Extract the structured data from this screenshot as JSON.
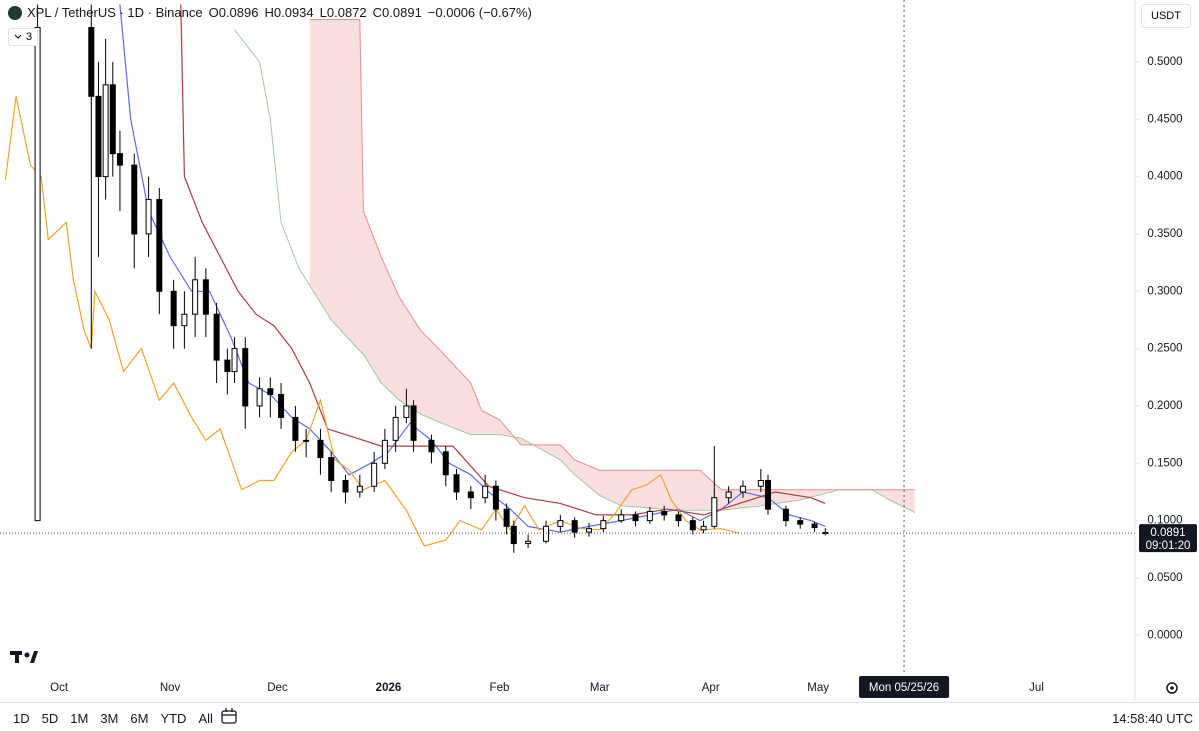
{
  "header": {
    "symbol": "XPL / TetherUS · 1D · Binance",
    "ohlc_labels": [
      "O",
      "H",
      "L",
      "C"
    ],
    "change": "−0.0006 (−0.67%)",
    "indicator_count": "3"
  },
  "chart_data": {
    "type": "candlestick",
    "currency": "USDT",
    "up_color": "#ffffff",
    "down_color": "#000000",
    "wick_color": "#000000",
    "candles": {
      "x": [
        -6,
        9,
        11,
        13,
        15,
        17,
        21,
        25,
        28,
        32,
        35,
        38,
        41,
        44,
        47,
        49,
        52,
        56,
        59,
        62,
        66,
        69,
        73,
        76,
        80,
        84,
        88,
        91,
        94,
        97,
        99,
        104,
        108,
        111,
        115,
        119,
        122,
        125,
        127,
        131,
        136,
        140,
        144,
        148,
        152,
        157,
        161,
        165,
        169,
        173,
        177,
        180,
        183,
        187,
        191,
        196,
        198,
        203,
        207,
        211,
        214
      ],
      "open": [
        0.1,
        0.53,
        0.47,
        0.4,
        0.48,
        0.42,
        0.41,
        0.35,
        0.38,
        0.3,
        0.27,
        0.28,
        0.31,
        0.28,
        0.24,
        0.23,
        0.25,
        0.2,
        0.215,
        0.21,
        0.19,
        0.17,
        0.17,
        0.155,
        0.135,
        0.125,
        0.13,
        0.15,
        0.17,
        0.19,
        0.2,
        0.17,
        0.16,
        0.14,
        0.125,
        0.12,
        0.13,
        0.11,
        0.095,
        0.08,
        0.082,
        0.095,
        0.1,
        0.09,
        0.093,
        0.1,
        0.105,
        0.1,
        0.108,
        0.105,
        0.1,
        0.092,
        0.095,
        0.12,
        0.125,
        0.13,
        0.135,
        0.11,
        0.1,
        0.097,
        0.0896
      ],
      "high": [
        0.55,
        0.55,
        0.5,
        0.52,
        0.5,
        0.44,
        0.42,
        0.4,
        0.39,
        0.31,
        0.3,
        0.33,
        0.32,
        0.29,
        0.25,
        0.26,
        0.26,
        0.225,
        0.225,
        0.22,
        0.2,
        0.18,
        0.18,
        0.16,
        0.14,
        0.14,
        0.16,
        0.18,
        0.2,
        0.215,
        0.205,
        0.175,
        0.165,
        0.145,
        0.13,
        0.14,
        0.135,
        0.115,
        0.1,
        0.088,
        0.1,
        0.105,
        0.103,
        0.098,
        0.104,
        0.11,
        0.108,
        0.112,
        0.113,
        0.108,
        0.103,
        0.1,
        0.165,
        0.13,
        0.135,
        0.145,
        0.14,
        0.113,
        0.103,
        0.099,
        0.0934
      ],
      "low": [
        0.1,
        0.25,
        0.33,
        0.38,
        0.4,
        0.37,
        0.32,
        0.33,
        0.28,
        0.25,
        0.25,
        0.26,
        0.26,
        0.22,
        0.21,
        0.22,
        0.18,
        0.19,
        0.19,
        0.18,
        0.16,
        0.155,
        0.14,
        0.125,
        0.115,
        0.12,
        0.125,
        0.145,
        0.16,
        0.185,
        0.16,
        0.15,
        0.13,
        0.118,
        0.11,
        0.115,
        0.1,
        0.088,
        0.072,
        0.076,
        0.08,
        0.09,
        0.085,
        0.086,
        0.09,
        0.098,
        0.095,
        0.097,
        0.1,
        0.095,
        0.088,
        0.089,
        0.093,
        0.115,
        0.12,
        0.125,
        0.105,
        0.095,
        0.093,
        0.09,
        0.0872
      ],
      "close": [
        0.53,
        0.47,
        0.4,
        0.48,
        0.42,
        0.41,
        0.35,
        0.38,
        0.3,
        0.27,
        0.28,
        0.31,
        0.28,
        0.24,
        0.23,
        0.25,
        0.2,
        0.215,
        0.21,
        0.19,
        0.17,
        0.17,
        0.155,
        0.135,
        0.125,
        0.13,
        0.15,
        0.17,
        0.19,
        0.2,
        0.17,
        0.16,
        0.14,
        0.125,
        0.12,
        0.13,
        0.11,
        0.095,
        0.08,
        0.082,
        0.095,
        0.1,
        0.09,
        0.093,
        0.1,
        0.105,
        0.1,
        0.108,
        0.105,
        0.1,
        0.092,
        0.095,
        0.12,
        0.125,
        0.13,
        0.135,
        0.11,
        0.1,
        0.097,
        0.094,
        0.0891
      ]
    },
    "overlays": [
      {
        "color": "#5b6ee1",
        "x": [
          17,
          20,
          25,
          31,
          37,
          42,
          48,
          53,
          59,
          65,
          70,
          76,
          81,
          87,
          92,
          98,
          104,
          109,
          115,
          120,
          126,
          131,
          140,
          148,
          157,
          165,
          173,
          179,
          185,
          191,
          198,
          204,
          210,
          214
        ],
        "values": [
          0.55,
          0.45,
          0.37,
          0.33,
          0.3,
          0.3,
          0.26,
          0.22,
          0.21,
          0.19,
          0.18,
          0.16,
          0.14,
          0.15,
          0.16,
          0.185,
          0.17,
          0.15,
          0.14,
          0.125,
          0.11,
          0.095,
          0.09,
          0.095,
          0.1,
          0.105,
          0.11,
          0.1,
          0.11,
          0.125,
          0.12,
          0.105,
          0.1,
          0.095
        ]
      },
      {
        "color": "#a8403f",
        "x": [
          34,
          35,
          40,
          45,
          50,
          55,
          60,
          65,
          70,
          75,
          80,
          90,
          100,
          110,
          120,
          130,
          140,
          150,
          160,
          170,
          180,
          190,
          200,
          210,
          214
        ],
        "values": [
          0.55,
          0.4,
          0.36,
          0.33,
          0.3,
          0.28,
          0.27,
          0.25,
          0.22,
          0.18,
          0.175,
          0.165,
          0.165,
          0.165,
          0.13,
          0.12,
          0.115,
          0.105,
          0.105,
          0.11,
          0.105,
          0.115,
          0.125,
          0.12,
          0.115
        ]
      },
      {
        "color": "#f0a030",
        "x": [
          -15,
          -12,
          -8,
          -5,
          -3,
          2,
          4,
          7,
          9,
          10,
          14,
          18,
          23,
          28,
          32,
          37,
          41,
          45,
          51,
          56,
          60,
          65,
          69,
          73,
          77,
          81,
          85,
          91,
          97,
          102,
          108,
          112,
          118,
          122,
          126,
          130,
          134,
          140,
          146,
          151,
          155,
          160,
          164,
          168,
          171,
          175,
          179,
          185,
          190
        ],
        "values": [
          0.397,
          0.47,
          0.41,
          0.4,
          0.345,
          0.36,
          0.31,
          0.266,
          0.25,
          0.3,
          0.275,
          0.23,
          0.25,
          0.205,
          0.22,
          0.19,
          0.17,
          0.18,
          0.127,
          0.135,
          0.135,
          0.16,
          0.17,
          0.205,
          0.153,
          0.144,
          0.127,
          0.135,
          0.109,
          0.078,
          0.083,
          0.1,
          0.092,
          0.11,
          0.092,
          0.113,
          0.092,
          0.1,
          0.093,
          0.092,
          0.105,
          0.127,
          0.131,
          0.14,
          0.118,
          0.1,
          0.092,
          0.093,
          0.089
        ]
      }
    ],
    "cloud": {
      "color_a": "#9ccc9c",
      "color_b": "#e88c8c",
      "fill": "#f8d7d7",
      "x": [
        49,
        56,
        59,
        62,
        67,
        70,
        76,
        84,
        85,
        90,
        95,
        101,
        106,
        115,
        118,
        123,
        129,
        140,
        144,
        151,
        157,
        173,
        179,
        185,
        196,
        207,
        218,
        227,
        232,
        239
      ],
      "span_a": [
        0.528,
        0.5,
        0.45,
        0.36,
        0.32,
        0.305,
        0.275,
        0.248,
        0.245,
        0.22,
        0.205,
        0.193,
        0.186,
        0.175,
        0.175,
        0.175,
        0.172,
        0.153,
        0.14,
        0.122,
        0.113,
        0.109,
        0.109,
        0.109,
        0.113,
        0.118,
        0.127,
        0.127,
        0.118,
        0.107
      ],
      "span_b": [
        null,
        null,
        null,
        null,
        null,
        0.537,
        0.537,
        0.537,
        0.37,
        0.33,
        0.295,
        0.266,
        0.25,
        0.22,
        0.196,
        0.188,
        0.166,
        0.166,
        0.153,
        0.144,
        0.144,
        0.144,
        0.144,
        0.127,
        0.127,
        0.127,
        0.127,
        0.127,
        0.127,
        0.127
      ]
    },
    "xlim": [
      -16.5,
      300.5
    ],
    "ylim": [
      -0.032,
      0.554
    ],
    "xticks": [
      {
        "value": 0,
        "label": "Oct"
      },
      {
        "value": 31,
        "label": "Nov"
      },
      {
        "value": 61,
        "label": "Dec"
      },
      {
        "value": 92,
        "label": "2026"
      },
      {
        "value": 123,
        "label": "Feb"
      },
      {
        "value": 151,
        "label": "Mar"
      },
      {
        "value": 182,
        "label": "Apr"
      },
      {
        "value": 212,
        "label": "May"
      },
      {
        "value": 273,
        "label": "Jul"
      }
    ],
    "yticks": [
      {
        "value": 0,
        "label": "0.0000"
      },
      {
        "value": 0.05,
        "label": "0.0500"
      },
      {
        "value": 0.1,
        "label": "0.1000"
      },
      {
        "value": 0.15,
        "label": "0.1500"
      },
      {
        "value": 0.2,
        "label": "0.2000"
      },
      {
        "value": 0.25,
        "label": "0.2500"
      },
      {
        "value": 0.3,
        "label": "0.3000"
      },
      {
        "value": 0.35,
        "label": "0.3500"
      },
      {
        "value": 0.4,
        "label": "0.4000"
      },
      {
        "value": 0.45,
        "label": "0.4500"
      },
      {
        "value": 0.5,
        "label": "0.5000"
      }
    ],
    "countdown": "09:01:20",
    "crosshair": {
      "x": 236,
      "label": "Mon 05/25/26"
    }
  },
  "toolbar": {
    "ranges": [
      "1D",
      "5D",
      "1M",
      "3M",
      "6M",
      "YTD",
      "All"
    ],
    "clock": "14:58:40 UTC"
  }
}
